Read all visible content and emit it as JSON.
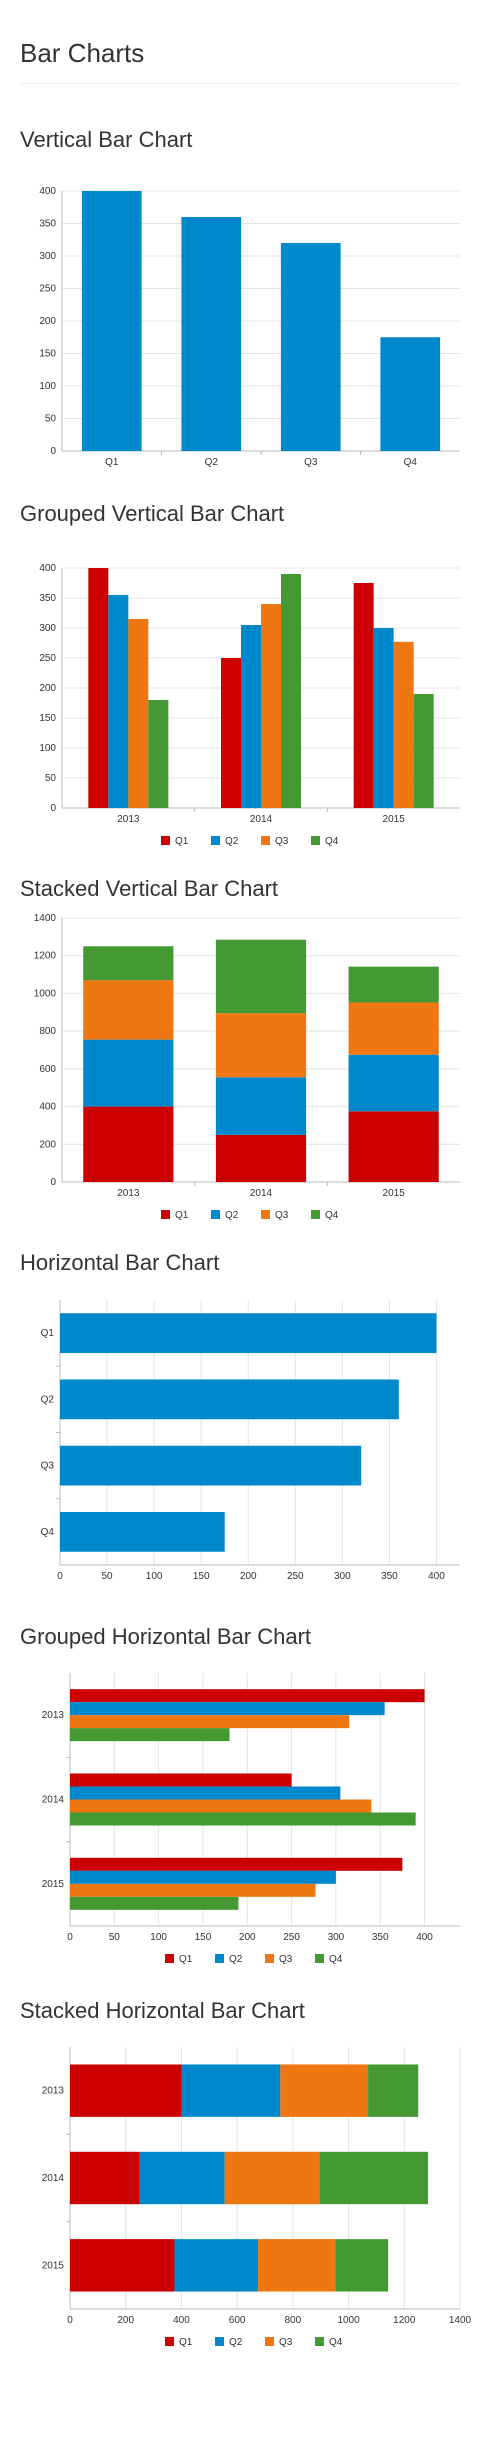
{
  "page": {
    "title": "Bar Charts"
  },
  "colors": {
    "Q1": "#cc0000",
    "Q2": "#0088cc",
    "Q3": "#ee7711",
    "Q4": "#449933"
  },
  "chart_data": [
    {
      "id": "vertical",
      "title": "Vertical Bar Chart",
      "type": "bar",
      "orientation": "vertical",
      "stacked": false,
      "categories": [
        "Q1",
        "Q2",
        "Q3",
        "Q4"
      ],
      "values": [
        400,
        360,
        320,
        175
      ],
      "ylim": [
        0,
        400
      ],
      "yticks": [
        0,
        50,
        100,
        150,
        200,
        250,
        300,
        350,
        400
      ],
      "legend": false,
      "grid": true
    },
    {
      "id": "grouped-vertical",
      "title": "Grouped Vertical Bar Chart",
      "type": "bar",
      "orientation": "vertical",
      "stacked": false,
      "categories": [
        "2013",
        "2014",
        "2015"
      ],
      "series": [
        {
          "name": "Q1",
          "values": [
            400,
            250,
            375
          ]
        },
        {
          "name": "Q2",
          "values": [
            355,
            305,
            300
          ]
        },
        {
          "name": "Q3",
          "values": [
            315,
            340,
            277
          ]
        },
        {
          "name": "Q4",
          "values": [
            180,
            390,
            190
          ]
        }
      ],
      "ylim": [
        0,
        400
      ],
      "yticks": [
        0,
        50,
        100,
        150,
        200,
        250,
        300,
        350,
        400
      ],
      "legend": "bottom",
      "grid": true
    },
    {
      "id": "stacked-vertical",
      "title": "Stacked Vertical Bar Chart",
      "type": "bar",
      "orientation": "vertical",
      "stacked": true,
      "categories": [
        "2013",
        "2014",
        "2015"
      ],
      "series": [
        {
          "name": "Q1",
          "values": [
            400,
            250,
            375
          ]
        },
        {
          "name": "Q2",
          "values": [
            355,
            305,
            300
          ]
        },
        {
          "name": "Q3",
          "values": [
            315,
            340,
            277
          ]
        },
        {
          "name": "Q4",
          "values": [
            180,
            390,
            190
          ]
        }
      ],
      "ylim": [
        0,
        1400
      ],
      "yticks": [
        0,
        200,
        400,
        600,
        800,
        1000,
        1200,
        1400
      ],
      "legend": "bottom",
      "grid": true
    },
    {
      "id": "horizontal",
      "title": "Horizontal Bar Chart",
      "type": "bar",
      "orientation": "horizontal",
      "stacked": false,
      "categories": [
        "Q1",
        "Q2",
        "Q3",
        "Q4"
      ],
      "values": [
        400,
        360,
        320,
        175
      ],
      "xlim": [
        0,
        425
      ],
      "xticks": [
        0,
        50,
        100,
        150,
        200,
        250,
        300,
        350,
        400
      ],
      "legend": false,
      "grid": true
    },
    {
      "id": "grouped-horizontal",
      "title": "Grouped Horizontal Bar Chart",
      "type": "bar",
      "orientation": "horizontal",
      "stacked": false,
      "categories": [
        "2013",
        "2014",
        "2015"
      ],
      "series": [
        {
          "name": "Q1",
          "values": [
            400,
            250,
            375
          ]
        },
        {
          "name": "Q2",
          "values": [
            355,
            305,
            300
          ]
        },
        {
          "name": "Q3",
          "values": [
            315,
            340,
            277
          ]
        },
        {
          "name": "Q4",
          "values": [
            180,
            390,
            190
          ]
        }
      ],
      "xlim": [
        0,
        440
      ],
      "xticks": [
        0,
        50,
        100,
        150,
        200,
        250,
        300,
        350,
        400
      ],
      "legend": "bottom",
      "grid": true
    },
    {
      "id": "stacked-horizontal",
      "title": "Stacked Horizontal Bar Chart",
      "type": "bar",
      "orientation": "horizontal",
      "stacked": true,
      "categories": [
        "2013",
        "2014",
        "2015"
      ],
      "series": [
        {
          "name": "Q1",
          "values": [
            400,
            250,
            375
          ]
        },
        {
          "name": "Q2",
          "values": [
            355,
            305,
            300
          ]
        },
        {
          "name": "Q3",
          "values": [
            315,
            340,
            277
          ]
        },
        {
          "name": "Q4",
          "values": [
            180,
            390,
            190
          ]
        }
      ],
      "xlim": [
        0,
        1400
      ],
      "xticks": [
        0,
        200,
        400,
        600,
        800,
        1000,
        1200,
        1400
      ],
      "legend": "bottom",
      "grid": true
    }
  ]
}
